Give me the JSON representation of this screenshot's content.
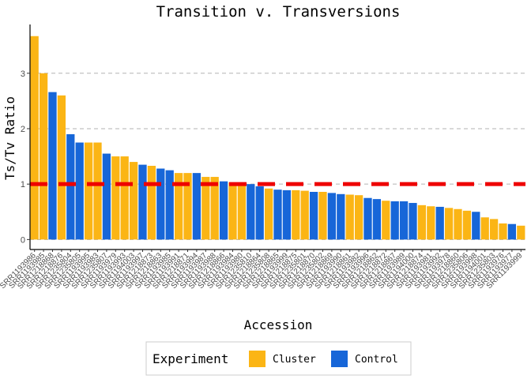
{
  "chart_data": {
    "type": "bar",
    "title": "Transition v. Transversions",
    "xlabel": "Accession",
    "ylabel": "Ts/Tv Ratio",
    "ylim": [
      -0.18,
      3.88
    ],
    "yticks": [
      0,
      1,
      2,
      3
    ],
    "grid": "horizontal dashed",
    "reference_line": {
      "y": 1.0,
      "color": "#ee0000",
      "style": "dashed"
    },
    "legend": {
      "title": "Experiment",
      "position": "bottom",
      "entries": [
        {
          "name": "Cluster",
          "color": "#fbb515"
        },
        {
          "name": "Control",
          "color": "#1766d8"
        }
      ]
    },
    "colors": {
      "Cluster": "#fbb515",
      "Control": "#1766d8"
    },
    "categories": [
      "SRR1193986",
      "SRR1193985",
      "SRR1218868",
      "SRR1218876",
      "SRR1235804",
      "SRR1235805",
      "SRR1193995",
      "SRR1193983",
      "SRR1235807",
      "SRR1193979",
      "SRR1193993",
      "SRR1194003",
      "SRR1193997",
      "SRR1218873",
      "SRR1218863",
      "SRR1193985",
      "SRR1193991",
      "SRR1218871",
      "SRR1193994",
      "SRR1193987",
      "SRR1193988",
      "SRR1218866",
      "SRR1193984",
      "SRR1193980",
      "SRR1235810",
      "SRR1218864",
      "SRR1235808",
      "SRR1218865",
      "SRR1193999",
      "SRR1218875",
      "SRR1235801",
      "SRR1218870",
      "SRR1235802",
      "SRR1218869",
      "SRR1193990",
      "SRR1218861",
      "SRR1193982",
      "SRR1193996",
      "SRR1218862",
      "SRR1218872",
      "SRR1218867",
      "SRR1193989",
      "SRR1194000",
      "SRR1218874",
      "SRR1193981",
      "SRR1193992",
      "SRR1193978",
      "SRR1218860",
      "SRR1235806",
      "SRR1193998",
      "SRR1194001",
      "SRR1235803",
      "SRR1193976",
      "SRR1193977",
      "SRR1193999"
    ],
    "xtick_labels": [
      "SRR1193986",
      "SRR1193985",
      "SRR1218868",
      "SRR1218876",
      "SRR1235804",
      "SRR1235805",
      "SRR1193995",
      "SRR1193983",
      "SRR1235807",
      "SRR1193979",
      "SRR1193993",
      "SRR1194003",
      "SRR1193997",
      "SRR1218873",
      "SRR1218863",
      "SRR1193985",
      "SRR1193991",
      "SRR1218871",
      "SRR1193994",
      "SRR1193987",
      "SRR1193988",
      "SRR1218866",
      "SRR1193984",
      "SRR1193980",
      "SRR1235810",
      "SRR1218864",
      "SRR1235808",
      "SRR1218865",
      "SRR1193999",
      "SRR1218875",
      "SRR1235801",
      "SRR1218870",
      "SRR1235802",
      "SRR1218869",
      "SRR1193990",
      "SRR1218861",
      "SRR1193982",
      "SRR1193996",
      "SRR1218862",
      "SRR1218872",
      "SRR1218867",
      "SRR1193989",
      "SRR1194000",
      "SRR1218874",
      "SRR1193981",
      "SRR1193992",
      "SRR1193978",
      "SRR1218860",
      "SRR1235806",
      "SRR1193998",
      "SRR1194001",
      "SRR1235803",
      "SRR1193976",
      "SRR1193977",
      "SRR1193999"
    ],
    "values": [
      3.67,
      3.0,
      2.66,
      2.6,
      1.9,
      1.75,
      1.75,
      1.75,
      1.55,
      1.5,
      1.5,
      1.4,
      1.35,
      1.33,
      1.28,
      1.25,
      1.2,
      1.2,
      1.2,
      1.13,
      1.13,
      1.05,
      1.03,
      1.0,
      1.0,
      0.96,
      0.92,
      0.9,
      0.89,
      0.89,
      0.88,
      0.86,
      0.86,
      0.84,
      0.82,
      0.81,
      0.8,
      0.75,
      0.73,
      0.7,
      0.69,
      0.69,
      0.66,
      0.62,
      0.6,
      0.59,
      0.57,
      0.55,
      0.52,
      0.5,
      0.4,
      0.37,
      0.29,
      0.28,
      0.25
    ],
    "groups": [
      "Cluster",
      "Cluster",
      "Control",
      "Cluster",
      "Control",
      "Control",
      "Cluster",
      "Cluster",
      "Control",
      "Cluster",
      "Cluster",
      "Cluster",
      "Control",
      "Cluster",
      "Control",
      "Control",
      "Cluster",
      "Cluster",
      "Control",
      "Cluster",
      "Cluster",
      "Control",
      "Cluster",
      "Cluster",
      "Control",
      "Control",
      "Cluster",
      "Control",
      "Control",
      "Cluster",
      "Cluster",
      "Control",
      "Cluster",
      "Control",
      "Control",
      "Cluster",
      "Cluster",
      "Control",
      "Control",
      "Cluster",
      "Control",
      "Control",
      "Control",
      "Cluster",
      "Cluster",
      "Control",
      "Cluster",
      "Cluster",
      "Cluster",
      "Control",
      "Cluster",
      "Cluster",
      "Cluster",
      "Control",
      "Cluster"
    ]
  }
}
